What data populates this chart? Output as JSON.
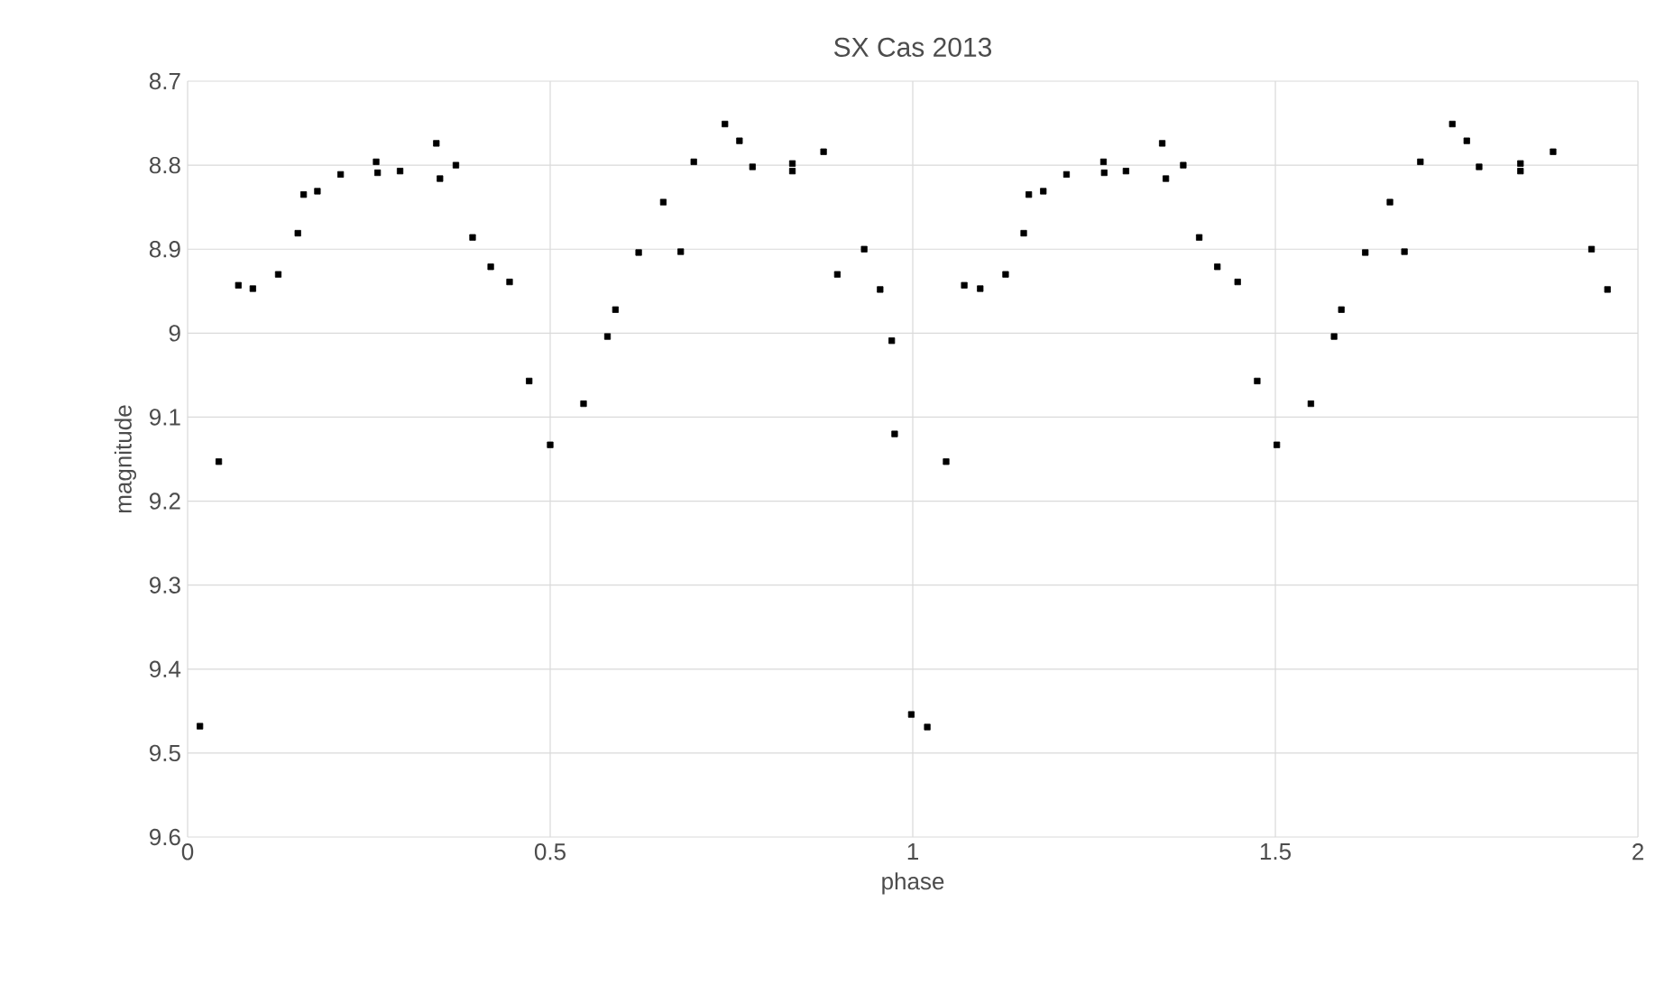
{
  "chart_data": {
    "type": "scatter",
    "title": "SX Cas 2013",
    "xlabel": "phase",
    "ylabel": "magnitude",
    "x": [
      0.017,
      0.043,
      0.07,
      0.09,
      0.125,
      0.152,
      0.16,
      0.179,
      0.211,
      0.26,
      0.262,
      0.293,
      0.343,
      0.348,
      0.37,
      0.393,
      0.418,
      0.444,
      0.471,
      0.5,
      0.546,
      0.579,
      0.59,
      0.622,
      0.656,
      0.68,
      0.698,
      0.741,
      0.761,
      0.779,
      0.834,
      0.834,
      0.877,
      0.896,
      0.933,
      0.955,
      0.971,
      0.975,
      0.998,
      1.02,
      1.046,
      1.071,
      1.093,
      1.128,
      1.153,
      1.16,
      1.18,
      1.212,
      1.263,
      1.264,
      1.294,
      1.344,
      1.349,
      1.373,
      1.395,
      1.42,
      1.448,
      1.475,
      1.502,
      1.549,
      1.581,
      1.591,
      1.624,
      1.658,
      1.678,
      1.7,
      1.744,
      1.764,
      1.781,
      1.838,
      1.838,
      1.883,
      1.936,
      1.958
    ],
    "values": [
      9.468,
      9.153,
      8.943,
      8.947,
      8.93,
      8.881,
      8.835,
      8.831,
      8.811,
      8.796,
      8.809,
      8.807,
      8.774,
      8.816,
      8.8,
      8.886,
      8.921,
      8.939,
      9.057,
      9.133,
      9.084,
      9.004,
      8.972,
      8.904,
      8.844,
      8.903,
      8.796,
      8.751,
      8.771,
      8.802,
      8.798,
      8.807,
      8.784,
      8.93,
      8.9,
      8.948,
      9.009,
      9.12,
      9.454,
      9.469,
      9.153,
      8.943,
      8.947,
      8.93,
      8.881,
      8.835,
      8.831,
      8.811,
      8.796,
      8.809,
      8.807,
      8.774,
      8.816,
      8.8,
      8.886,
      8.921,
      8.939,
      9.057,
      9.133,
      9.084,
      9.004,
      8.972,
      8.904,
      8.844,
      8.903,
      8.796,
      8.751,
      8.771,
      8.802,
      8.798,
      8.807,
      8.784,
      8.9,
      8.948
    ],
    "color": "#000000",
    "marker": "square",
    "grid": true,
    "xlim": [
      0,
      2
    ],
    "xticks": [
      0,
      0.5,
      1,
      1.5,
      2
    ],
    "ylim": [
      9.6,
      8.7
    ],
    "yticks": [
      8.7,
      8.8,
      8.9,
      9,
      9.1,
      9.2,
      9.3,
      9.4,
      9.5,
      9.6
    ]
  }
}
